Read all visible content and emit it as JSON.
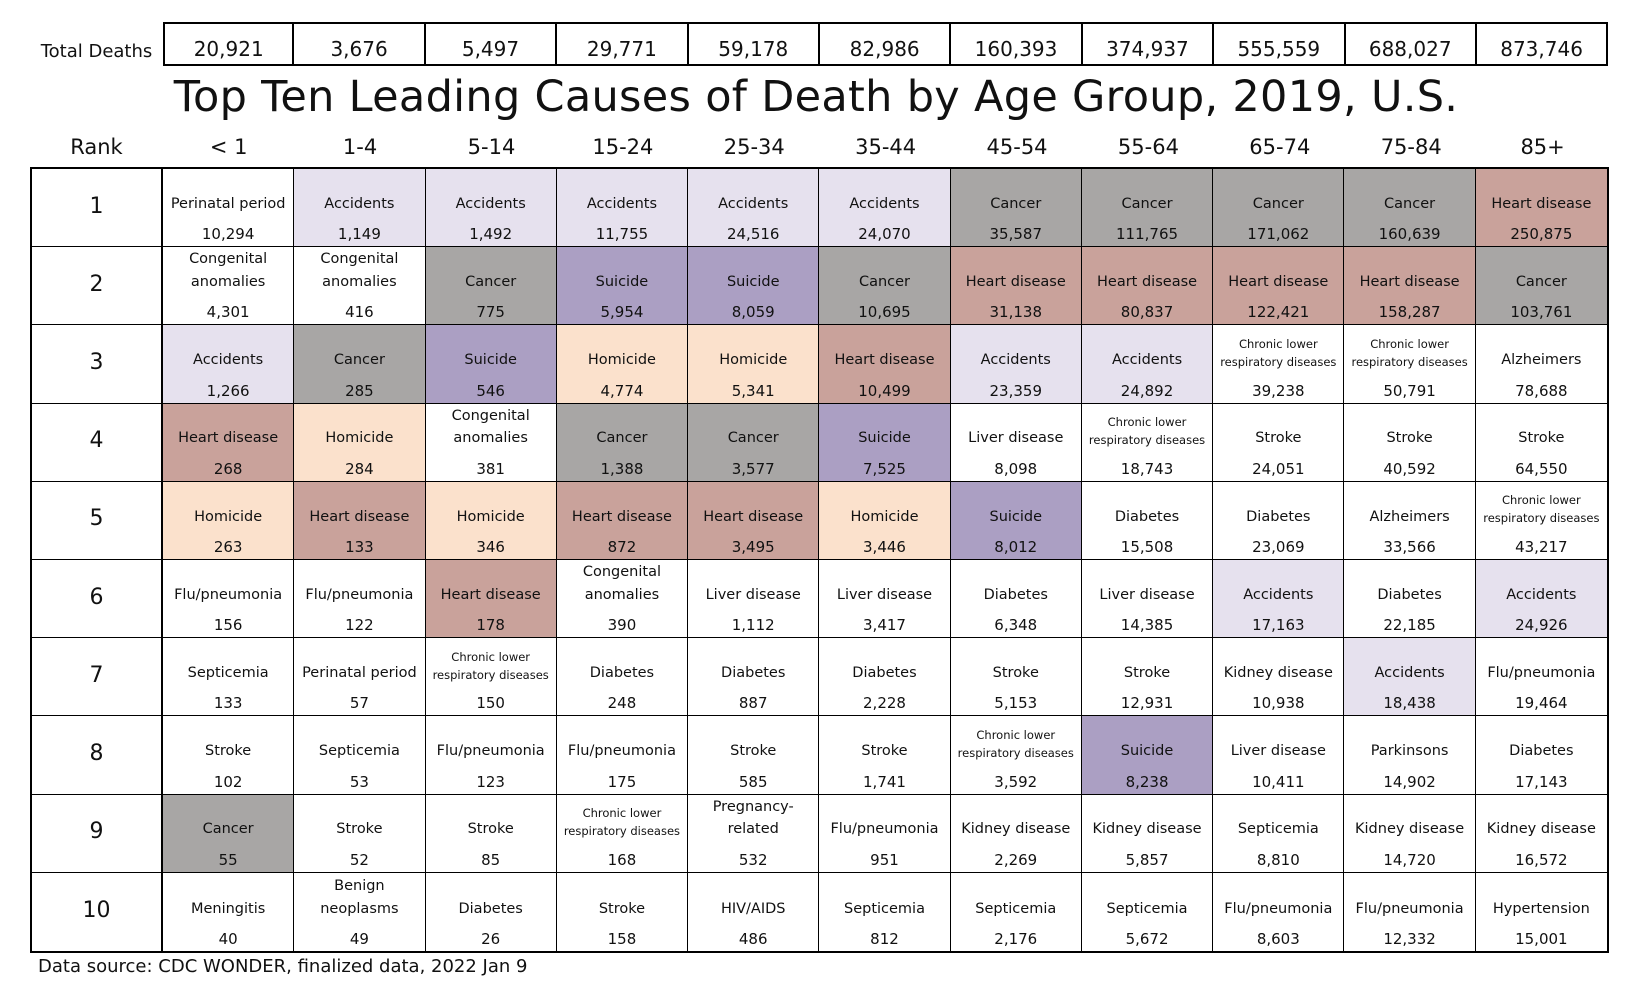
{
  "title": "Top Ten Leading Causes of Death by Age Group, 2019, U.S.",
  "source": "Data source: CDC WONDER, finalized data, 2022 Jan 9",
  "totals_label": "Total Deaths",
  "rank_label": "Rank",
  "colors": {
    "Accidents": "#e6e1ee",
    "Cancer": "#a8a6a5",
    "Heart disease": "#c9a29b",
    "Suicide": "#ab9fc3",
    "Homicide": "#fbe1cc"
  },
  "chart_data": {
    "type": "table",
    "age_groups": [
      "< 1",
      "1-4",
      "5-14",
      "15-24",
      "25-34",
      "35-44",
      "45-54",
      "55-64",
      "65-74",
      "75-84",
      "85+"
    ],
    "total_deaths": [
      "20,921",
      "3,676",
      "5,497",
      "29,771",
      "59,178",
      "82,986",
      "160,393",
      "374,937",
      "555,559",
      "688,027",
      "873,746"
    ],
    "ranks": [
      "1",
      "2",
      "3",
      "4",
      "5",
      "6",
      "7",
      "8",
      "9",
      "10"
    ],
    "rows": [
      [
        [
          "Perinatal period",
          "10,294"
        ],
        [
          "Accidents",
          "1,149"
        ],
        [
          "Accidents",
          "1,492"
        ],
        [
          "Accidents",
          "11,755"
        ],
        [
          "Accidents",
          "24,516"
        ],
        [
          "Accidents",
          "24,070"
        ],
        [
          "Cancer",
          "35,587"
        ],
        [
          "Cancer",
          "111,765"
        ],
        [
          "Cancer",
          "171,062"
        ],
        [
          "Cancer",
          "160,639"
        ],
        [
          "Heart disease",
          "250,875"
        ]
      ],
      [
        [
          "Congenital anomalies",
          "4,301"
        ],
        [
          "Congenital anomalies",
          "416"
        ],
        [
          "Cancer",
          "775"
        ],
        [
          "Suicide",
          "5,954"
        ],
        [
          "Suicide",
          "8,059"
        ],
        [
          "Cancer",
          "10,695"
        ],
        [
          "Heart disease",
          "31,138"
        ],
        [
          "Heart disease",
          "80,837"
        ],
        [
          "Heart disease",
          "122,421"
        ],
        [
          "Heart disease",
          "158,287"
        ],
        [
          "Cancer",
          "103,761"
        ]
      ],
      [
        [
          "Accidents",
          "1,266"
        ],
        [
          "Cancer",
          "285"
        ],
        [
          "Suicide",
          "546"
        ],
        [
          "Homicide",
          "4,774"
        ],
        [
          "Homicide",
          "5,341"
        ],
        [
          "Heart disease",
          "10,499"
        ],
        [
          "Accidents",
          "23,359"
        ],
        [
          "Accidents",
          "24,892"
        ],
        [
          "Chronic lower respiratory diseases",
          "39,238"
        ],
        [
          "Chronic lower respiratory diseases",
          "50,791"
        ],
        [
          "Alzheimers",
          "78,688"
        ]
      ],
      [
        [
          "Heart disease",
          "268"
        ],
        [
          "Homicide",
          "284"
        ],
        [
          "Congenital anomalies",
          "381"
        ],
        [
          "Cancer",
          "1,388"
        ],
        [
          "Cancer",
          "3,577"
        ],
        [
          "Suicide",
          "7,525"
        ],
        [
          "Liver disease",
          "8,098"
        ],
        [
          "Chronic lower respiratory diseases",
          "18,743"
        ],
        [
          "Stroke",
          "24,051"
        ],
        [
          "Stroke",
          "40,592"
        ],
        [
          "Stroke",
          "64,550"
        ]
      ],
      [
        [
          "Homicide",
          "263"
        ],
        [
          "Heart disease",
          "133"
        ],
        [
          "Homicide",
          "346"
        ],
        [
          "Heart disease",
          "872"
        ],
        [
          "Heart disease",
          "3,495"
        ],
        [
          "Homicide",
          "3,446"
        ],
        [
          "Suicide",
          "8,012"
        ],
        [
          "Diabetes",
          "15,508"
        ],
        [
          "Diabetes",
          "23,069"
        ],
        [
          "Alzheimers",
          "33,566"
        ],
        [
          "Chronic lower respiratory diseases",
          "43,217"
        ]
      ],
      [
        [
          "Flu/pneumonia",
          "156"
        ],
        [
          "Flu/pneumonia",
          "122"
        ],
        [
          "Heart disease",
          "178"
        ],
        [
          "Congenital anomalies",
          "390"
        ],
        [
          "Liver disease",
          "1,112"
        ],
        [
          "Liver disease",
          "3,417"
        ],
        [
          "Diabetes",
          "6,348"
        ],
        [
          "Liver disease",
          "14,385"
        ],
        [
          "Accidents",
          "17,163"
        ],
        [
          "Diabetes",
          "22,185"
        ],
        [
          "Accidents",
          "24,926"
        ]
      ],
      [
        [
          "Septicemia",
          "133"
        ],
        [
          "Perinatal period",
          "57"
        ],
        [
          "Chronic lower respiratory diseases",
          "150"
        ],
        [
          "Diabetes",
          "248"
        ],
        [
          "Diabetes",
          "887"
        ],
        [
          "Diabetes",
          "2,228"
        ],
        [
          "Stroke",
          "5,153"
        ],
        [
          "Stroke",
          "12,931"
        ],
        [
          "Kidney disease",
          "10,938"
        ],
        [
          "Accidents",
          "18,438"
        ],
        [
          "Flu/pneumonia",
          "19,464"
        ]
      ],
      [
        [
          "Stroke",
          "102"
        ],
        [
          "Septicemia",
          "53"
        ],
        [
          "Flu/pneumonia",
          "123"
        ],
        [
          "Flu/pneumonia",
          "175"
        ],
        [
          "Stroke",
          "585"
        ],
        [
          "Stroke",
          "1,741"
        ],
        [
          "Chronic lower respiratory diseases",
          "3,592"
        ],
        [
          "Suicide",
          "8,238"
        ],
        [
          "Liver disease",
          "10,411"
        ],
        [
          "Parkinsons",
          "14,902"
        ],
        [
          "Diabetes",
          "17,143"
        ]
      ],
      [
        [
          "Cancer",
          "55"
        ],
        [
          "Stroke",
          "52"
        ],
        [
          "Stroke",
          "85"
        ],
        [
          "Chronic lower respiratory diseases",
          "168"
        ],
        [
          "Pregnancy-related",
          "532"
        ],
        [
          "Flu/pneumonia",
          "951"
        ],
        [
          "Kidney disease",
          "2,269"
        ],
        [
          "Kidney disease",
          "5,857"
        ],
        [
          "Septicemia",
          "8,810"
        ],
        [
          "Kidney disease",
          "14,720"
        ],
        [
          "Kidney disease",
          "16,572"
        ]
      ],
      [
        [
          "Meningitis",
          "40"
        ],
        [
          "Benign neoplasms",
          "49"
        ],
        [
          "Diabetes",
          "26"
        ],
        [
          "Stroke",
          "158"
        ],
        [
          "HIV/AIDS",
          "486"
        ],
        [
          "Septicemia",
          "812"
        ],
        [
          "Septicemia",
          "2,176"
        ],
        [
          "Septicemia",
          "5,672"
        ],
        [
          "Flu/pneumonia",
          "8,603"
        ],
        [
          "Flu/pneumonia",
          "12,332"
        ],
        [
          "Hypertension",
          "15,001"
        ]
      ]
    ]
  }
}
